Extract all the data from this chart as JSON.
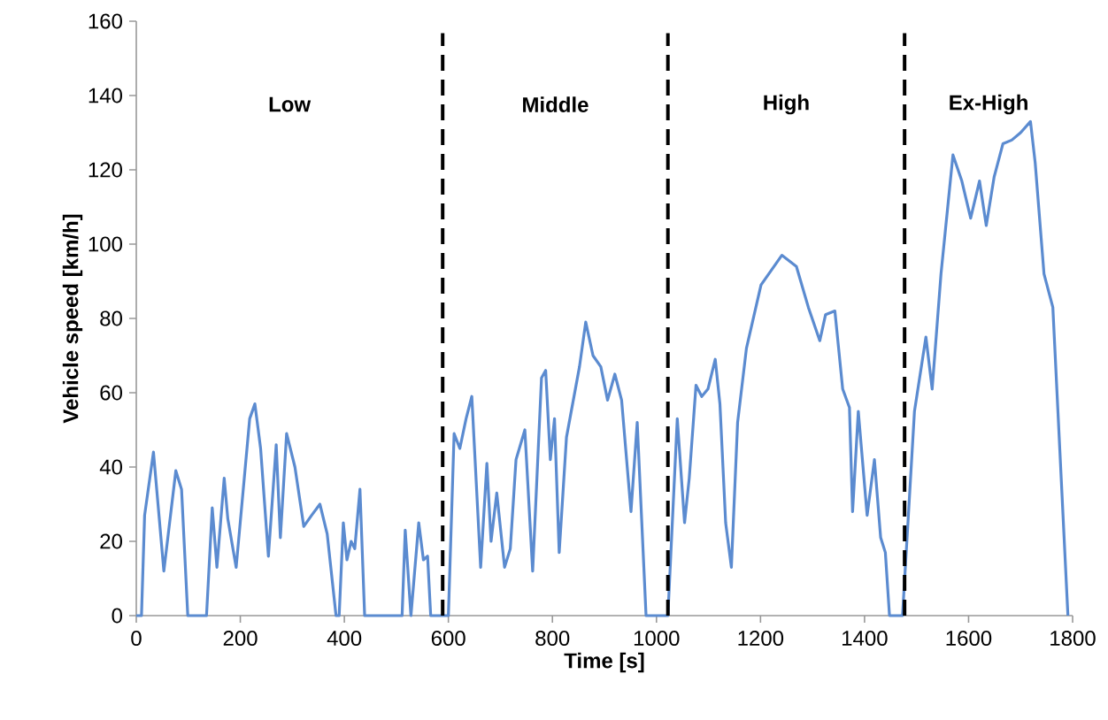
{
  "chart_data": {
    "type": "line",
    "xlabel": "Time [s]",
    "ylabel": "Vehicle speed [km/h]",
    "xlim": [
      0,
      1800
    ],
    "ylim": [
      0,
      160
    ],
    "xticks": [
      0,
      200,
      400,
      600,
      800,
      1000,
      1200,
      1400,
      1600,
      1800
    ],
    "yticks": [
      0,
      20,
      40,
      60,
      80,
      100,
      120,
      140,
      160
    ],
    "grid": false,
    "legend": false,
    "marker": "none",
    "line_style": "solid",
    "annotations": [
      "Low",
      "Middle",
      "High",
      "Ex-High"
    ],
    "ref_lines": [
      {
        "axis": "x",
        "value": 589,
        "label": null,
        "color": "#000000",
        "line_style": "dashed"
      },
      {
        "axis": "x",
        "value": 1022,
        "label": null,
        "color": "#000000",
        "line_style": "dashed"
      },
      {
        "axis": "x",
        "value": 1477,
        "label": null,
        "color": "#000000",
        "line_style": "dashed"
      }
    ],
    "series": [
      {
        "color": "#5b8bd0",
        "x": [
          0,
          10,
          16,
          33,
          53,
          76,
          87,
          99,
          135,
          146,
          155,
          169,
          176,
          192,
          218,
          228,
          239,
          254,
          269,
          277,
          289,
          305,
          322,
          337,
          353,
          367,
          384,
          390,
          398,
          405,
          413,
          420,
          430,
          439,
          511,
          517,
          528,
          543,
          552,
          560,
          566,
          600,
          611,
          622,
          634,
          645,
          662,
          674,
          682,
          693,
          708,
          719,
          730,
          747,
          762,
          779,
          787,
          796,
          804,
          813,
          827,
          852,
          864,
          878,
          893,
          906,
          920,
          933,
          951,
          963,
          980,
          1022,
          1040,
          1054,
          1063,
          1076,
          1087,
          1099,
          1113,
          1122,
          1133,
          1144,
          1156,
          1173,
          1201,
          1241,
          1269,
          1292,
          1314,
          1325,
          1343,
          1358,
          1371,
          1377,
          1388,
          1405,
          1419,
          1431,
          1440,
          1448,
          1473,
          1496,
          1518,
          1530,
          1547,
          1570,
          1587,
          1604,
          1621,
          1634,
          1649,
          1666,
          1683,
          1700,
          1719,
          1728,
          1745,
          1762,
          1791
        ],
        "values": [
          0,
          0,
          27,
          44,
          12,
          39,
          34,
          0,
          0,
          29,
          13,
          37,
          26,
          13,
          53,
          57,
          45,
          16,
          46,
          21,
          49,
          40,
          24,
          27,
          30,
          22,
          0,
          0,
          25,
          15,
          20,
          18,
          34,
          0,
          0,
          23,
          0,
          25,
          15,
          16,
          0,
          0,
          49,
          45,
          53,
          59,
          13,
          41,
          20,
          33,
          13,
          18,
          42,
          50,
          12,
          64,
          66,
          42,
          53,
          17,
          48,
          67,
          79,
          70,
          67,
          58,
          65,
          58,
          28,
          52,
          0,
          0,
          53,
          25,
          37,
          62,
          59,
          61,
          69,
          57,
          25,
          13,
          52,
          72,
          89,
          97,
          94,
          83,
          74,
          81,
          82,
          61,
          56,
          28,
          55,
          27,
          42,
          21,
          17,
          0,
          0,
          55,
          75,
          61,
          92,
          124,
          117,
          107,
          117,
          105,
          118,
          127,
          128,
          130,
          133,
          122,
          92,
          83,
          0
        ]
      }
    ]
  }
}
